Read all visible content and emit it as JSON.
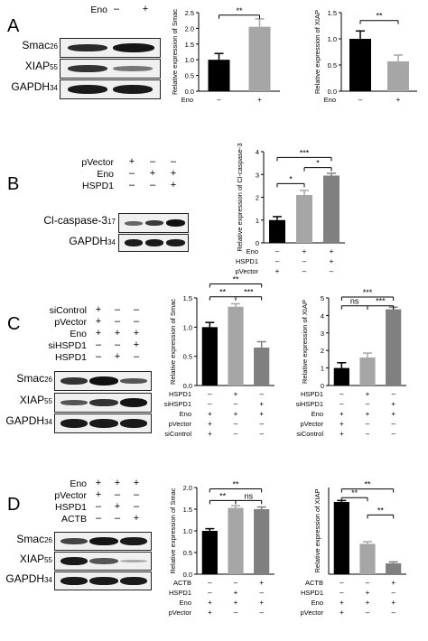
{
  "panels": {
    "A": {
      "label": "A",
      "conditions": [
        {
          "name": "Eno",
          "values": [
            "–",
            "+"
          ]
        }
      ],
      "blots": [
        {
          "name": "Smac",
          "kda": "26"
        },
        {
          "name": "XIAP",
          "kda": "55"
        },
        {
          "name": "GAPDH",
          "kda": "34"
        }
      ]
    },
    "B": {
      "label": "B",
      "conditions": [
        {
          "name": "pVector",
          "values": [
            "+",
            "–",
            "–"
          ]
        },
        {
          "name": "Eno",
          "values": [
            "–",
            "+",
            "+"
          ]
        },
        {
          "name": "HSPD1",
          "values": [
            "–",
            "–",
            "+"
          ]
        }
      ],
      "blots": [
        {
          "name": "Cl-caspase-3",
          "kda": "17"
        },
        {
          "name": "GAPDH",
          "kda": "34"
        }
      ]
    },
    "C": {
      "label": "C",
      "conditions": [
        {
          "name": "siControl",
          "values": [
            "+",
            "–",
            "–"
          ]
        },
        {
          "name": "pVector",
          "values": [
            "+",
            "–",
            "–"
          ]
        },
        {
          "name": "Eno",
          "values": [
            "+",
            "+",
            "+"
          ]
        },
        {
          "name": "siHSPD1",
          "values": [
            "–",
            "–",
            "+"
          ]
        },
        {
          "name": "HSPD1",
          "values": [
            "–",
            "+",
            "–"
          ]
        }
      ],
      "blots": [
        {
          "name": "Smac",
          "kda": "26"
        },
        {
          "name": "XIAP",
          "kda": "55"
        },
        {
          "name": "GAPDH",
          "kda": "34"
        }
      ]
    },
    "D": {
      "label": "D",
      "conditions": [
        {
          "name": "Eno",
          "values": [
            "+",
            "+",
            "+"
          ]
        },
        {
          "name": "pVector",
          "values": [
            "+",
            "–",
            "–"
          ]
        },
        {
          "name": "HSPD1",
          "values": [
            "–",
            "+",
            "–"
          ]
        },
        {
          "name": "ACTB",
          "values": [
            "–",
            "–",
            "+"
          ]
        }
      ],
      "blots": [
        {
          "name": "Smac",
          "kda": "26"
        },
        {
          "name": "XIAP",
          "kda": "55"
        },
        {
          "name": "GAPDH",
          "kda": "34"
        }
      ]
    }
  },
  "chart_data": [
    {
      "id": "A1",
      "type": "bar",
      "ylabel": "Relative expression of Smac",
      "ylim": [
        0,
        2.5
      ],
      "yticks": [
        "0.0",
        "0.5",
        "1.0",
        "1.5",
        "2.0",
        "2.5"
      ],
      "ytick_values": [
        0,
        0.5,
        1,
        1.5,
        2,
        2.5
      ],
      "values": [
        1.0,
        2.05
      ],
      "errors": [
        0.2,
        0.25
      ],
      "colors": [
        "#000000",
        "#a6a6a6"
      ],
      "cond_rows": [
        {
          "name": "Eno",
          "values": [
            "–",
            "+"
          ]
        }
      ],
      "sig": [
        {
          "from": 0,
          "to": 1,
          "y": 2.42,
          "label": "**"
        }
      ]
    },
    {
      "id": "A2",
      "type": "bar",
      "ylabel": "Relative expression of XIAP",
      "ylim": [
        0,
        1.5
      ],
      "yticks": [
        "0.0",
        "0.5",
        "1.0",
        "1.5"
      ],
      "ytick_values": [
        0,
        0.5,
        1,
        1.5
      ],
      "values": [
        1.0,
        0.57
      ],
      "errors": [
        0.15,
        0.12
      ],
      "colors": [
        "#000000",
        "#a6a6a6"
      ],
      "cond_rows": [
        {
          "name": "Eno",
          "values": [
            "–",
            "+"
          ]
        }
      ],
      "sig": [
        {
          "from": 0,
          "to": 1,
          "y": 1.35,
          "label": "**"
        }
      ]
    },
    {
      "id": "B1",
      "type": "bar",
      "ylabel": "Relative expression of Cl-caspase-3",
      "ylim": [
        0,
        4
      ],
      "yticks": [
        "0",
        "1",
        "2",
        "3",
        "4"
      ],
      "ytick_values": [
        0,
        1,
        2,
        3,
        4
      ],
      "values": [
        1.0,
        2.1,
        2.95
      ],
      "errors": [
        0.15,
        0.2,
        0.1
      ],
      "colors": [
        "#000000",
        "#a6a6a6",
        "#808080"
      ],
      "cond_rows": [
        {
          "name": "Eno",
          "values": [
            "–",
            "+",
            "+"
          ]
        },
        {
          "name": "HSPD1",
          "values": [
            "–",
            "–",
            "+"
          ]
        },
        {
          "name": "pVector",
          "values": [
            "+",
            "–",
            "–"
          ]
        }
      ],
      "sig": [
        {
          "from": 0,
          "to": 1,
          "y": 2.6,
          "label": "*"
        },
        {
          "from": 1,
          "to": 2,
          "y": 3.3,
          "label": "*"
        },
        {
          "from": 0,
          "to": 2,
          "y": 3.75,
          "label": "***"
        }
      ]
    },
    {
      "id": "C1",
      "type": "bar",
      "ylabel": "Relative expression of Smac",
      "ylim": [
        0,
        1.5
      ],
      "yticks": [
        "0.0",
        "0.5",
        "1.0",
        "1.5"
      ],
      "ytick_values": [
        0,
        0.5,
        1,
        1.5
      ],
      "values": [
        1.0,
        1.35,
        0.65
      ],
      "errors": [
        0.08,
        0.05,
        0.1
      ],
      "colors": [
        "#000000",
        "#a6a6a6",
        "#808080"
      ],
      "cond_rows": [
        {
          "name": "HSPD1",
          "values": [
            "–",
            "+",
            "–"
          ]
        },
        {
          "name": "siHSPD1",
          "values": [
            "–",
            "–",
            "+"
          ]
        },
        {
          "name": "Eno",
          "values": [
            "+",
            "+",
            "+"
          ]
        },
        {
          "name": "pVector",
          "values": [
            "+",
            "–",
            "–"
          ]
        },
        {
          "name": "siControl",
          "values": [
            "+",
            "–",
            "–"
          ]
        }
      ],
      "sig": [
        {
          "from": 0,
          "to": 1,
          "y": 1.52,
          "label": "**"
        },
        {
          "from": 1,
          "to": 2,
          "y": 1.52,
          "label": "***"
        },
        {
          "from": 0,
          "to": 2,
          "y": 1.74,
          "label": "**"
        }
      ]
    },
    {
      "id": "C2",
      "type": "bar",
      "ylabel": "Relative expression of XIAP",
      "ylim": [
        0,
        5
      ],
      "yticks": [
        "0",
        "1",
        "2",
        "3",
        "4",
        "5"
      ],
      "ytick_values": [
        0,
        1,
        2,
        3,
        4,
        5
      ],
      "values": [
        1.0,
        1.6,
        4.35
      ],
      "errors": [
        0.3,
        0.25,
        0.12
      ],
      "colors": [
        "#000000",
        "#a6a6a6",
        "#808080"
      ],
      "cond_rows": [
        {
          "name": "HSPD1",
          "values": [
            "–",
            "+",
            "–"
          ]
        },
        {
          "name": "siHSPD1",
          "values": [
            "–",
            "–",
            "+"
          ]
        },
        {
          "name": "Eno",
          "values": [
            "+",
            "+",
            "+"
          ]
        },
        {
          "name": "pVector",
          "values": [
            "+",
            "–",
            "–"
          ]
        },
        {
          "name": "siControl",
          "values": [
            "+",
            "–",
            "–"
          ]
        }
      ],
      "sig": [
        {
          "from": 0,
          "to": 1,
          "y": 4.55,
          "label": "ns"
        },
        {
          "from": 1,
          "to": 2,
          "y": 4.55,
          "label": "***"
        },
        {
          "from": 0,
          "to": 2,
          "y": 5.05,
          "label": "***"
        }
      ]
    },
    {
      "id": "D1",
      "type": "bar",
      "ylabel": "Relative expression of Smac",
      "ylim": [
        0,
        2.0
      ],
      "yticks": [
        "0.0",
        "0.5",
        "1.0",
        "1.5",
        "2.0"
      ],
      "ytick_values": [
        0,
        0.5,
        1,
        1.5,
        2
      ],
      "values": [
        1.0,
        1.53,
        1.5
      ],
      "errors": [
        0.05,
        0.05,
        0.05
      ],
      "colors": [
        "#000000",
        "#a6a6a6",
        "#808080"
      ],
      "cond_rows": [
        {
          "name": "ACTB",
          "values": [
            "–",
            "–",
            "+"
          ]
        },
        {
          "name": "HSPD1",
          "values": [
            "–",
            "+",
            "–"
          ]
        },
        {
          "name": "Eno",
          "values": [
            "+",
            "+",
            "+"
          ]
        },
        {
          "name": "pVector",
          "values": [
            "+",
            "–",
            "–"
          ]
        }
      ],
      "sig": [
        {
          "from": 0,
          "to": 1,
          "y": 1.7,
          "label": "**"
        },
        {
          "from": 1,
          "to": 2,
          "y": 1.7,
          "label": "ns"
        },
        {
          "from": 0,
          "to": 2,
          "y": 1.97,
          "label": "**"
        }
      ]
    },
    {
      "id": "D2",
      "type": "bar",
      "ylabel": "Relative expression of XIAP",
      "ylim": [
        0,
        1.2
      ],
      "yticks": [],
      "ytick_values": [],
      "values": [
        1.0,
        0.42,
        0.15
      ],
      "errors": [
        0.02,
        0.03,
        0.02
      ],
      "colors": [
        "#000000",
        "#a6a6a6",
        "#808080"
      ],
      "cond_rows": [
        {
          "name": "ACTB",
          "values": [
            "–",
            "–",
            "+"
          ]
        },
        {
          "name": "HSPD1",
          "values": [
            "–",
            "+",
            "–"
          ]
        },
        {
          "name": "Eno",
          "values": [
            "+",
            "+",
            "+"
          ]
        },
        {
          "name": "pVector",
          "values": [
            "+",
            "–",
            "–"
          ]
        }
      ],
      "sig": [
        {
          "from": 0,
          "to": 1,
          "y": 1.06,
          "label": "**"
        },
        {
          "from": 1,
          "to": 2,
          "y": 0.82,
          "label": "**"
        },
        {
          "from": 0,
          "to": 2,
          "y": 1.18,
          "label": "**"
        }
      ]
    }
  ]
}
